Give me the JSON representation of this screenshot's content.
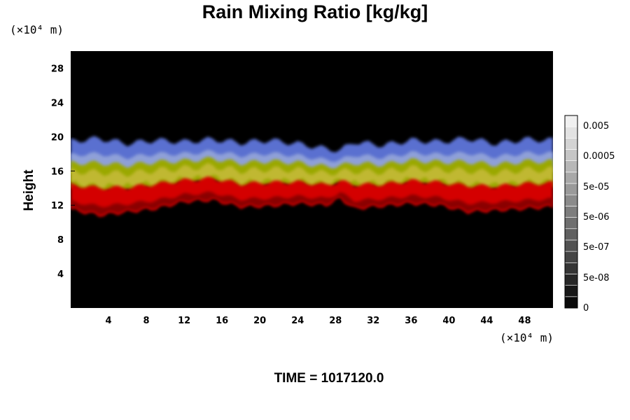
{
  "chart_data": {
    "type": "heatmap",
    "title": "Rain Mixing Ratio [kg/kg]",
    "ylabel": "Height",
    "xunit": "(×10⁴ m)",
    "yunit": "(×10⁴ m)",
    "footer": "TIME = 1017120.0",
    "xlim": [
      0,
      51
    ],
    "ylim": [
      0,
      30
    ],
    "xticks": [
      {
        "value": 4,
        "label": "4"
      },
      {
        "value": 8,
        "label": "8"
      },
      {
        "value": 12,
        "label": "12"
      },
      {
        "value": 16,
        "label": "16"
      },
      {
        "value": 20,
        "label": "20"
      },
      {
        "value": 24,
        "label": "24"
      },
      {
        "value": 28,
        "label": "28"
      },
      {
        "value": 32,
        "label": "32"
      },
      {
        "value": 36,
        "label": "36"
      },
      {
        "value": 40,
        "label": "40"
      },
      {
        "value": 44,
        "label": "44"
      },
      {
        "value": 48,
        "label": "48"
      }
    ],
    "yticks": [
      {
        "value": 4,
        "label": "4"
      },
      {
        "value": 8,
        "label": "8"
      },
      {
        "value": 12,
        "label": "12"
      },
      {
        "value": 16,
        "label": "16"
      },
      {
        "value": 20,
        "label": "20"
      },
      {
        "value": 24,
        "label": "24"
      },
      {
        "value": 28,
        "label": "28"
      }
    ],
    "colorbar": {
      "labels": [
        "0.005",
        "0.0005",
        "5e-05",
        "5e-06",
        "5e-07",
        "5e-08",
        "0"
      ],
      "levels": 17
    },
    "background_color": "#000000",
    "layer_colors": {
      "lower": "#d40000",
      "middle": "#9aa800",
      "upper": "#5a6fd0"
    },
    "field_profile": {
      "x": [
        0,
        3,
        6,
        9,
        12,
        15,
        18,
        21,
        24,
        27,
        28.5,
        30,
        33,
        36,
        39,
        42,
        45,
        48,
        51
      ],
      "bottom_km": [
        11.5,
        10.8,
        11.2,
        11.6,
        12.4,
        12.6,
        11.8,
        11.9,
        12.2,
        12.0,
        12.8,
        11.6,
        11.9,
        12.2,
        12.0,
        11.2,
        11.4,
        11.6,
        11.8
      ],
      "top_km": [
        19.5,
        19.8,
        19.2,
        19.6,
        19.4,
        19.7,
        19.3,
        19.6,
        19.2,
        18.6,
        18.4,
        19.4,
        19.0,
        19.6,
        19.4,
        19.8,
        19.2,
        19.7,
        19.6
      ]
    }
  }
}
